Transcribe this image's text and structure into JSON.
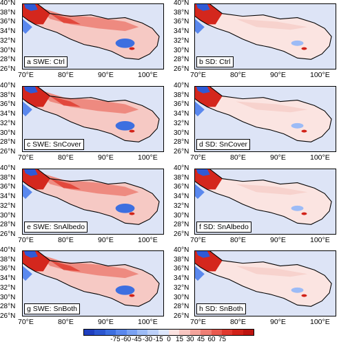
{
  "panels": [
    {
      "label": "a SWE: Ctrl",
      "kind": "swe"
    },
    {
      "label": "b SD: Ctrl",
      "kind": "sd"
    },
    {
      "label": "c SWE: SnCover",
      "kind": "swe"
    },
    {
      "label": "d SD: SnCover",
      "kind": "sd"
    },
    {
      "label": "e SWE: SnAlbedo",
      "kind": "swe"
    },
    {
      "label": "f SD: SnAlbedo",
      "kind": "sd"
    },
    {
      "label": "g SWE: SnBoth",
      "kind": "swe"
    },
    {
      "label": "h SD: SnBoth",
      "kind": "sd"
    }
  ],
  "lat_ticks": [
    "40°N",
    "38°N",
    "36°N",
    "34°N",
    "32°N",
    "30°N",
    "28°N",
    "26°N"
  ],
  "lon_ticks": [
    "70°E",
    "80°E",
    "90°E",
    "100°E"
  ],
  "colorbar": {
    "labels": [
      "-75",
      "-60",
      "-45",
      "-30",
      "-15",
      "0",
      "15",
      "30",
      "45",
      "60",
      "75"
    ],
    "colors": [
      "#1f3fbf",
      "#2c57d0",
      "#3d6fe0",
      "#5a88ee",
      "#7aa2f3",
      "#9cbbf6",
      "#bcd0f9",
      "#dce6fb",
      "#fbe2e0",
      "#f8c6c1",
      "#f3a49c",
      "#ee7f75",
      "#e85a4f",
      "#e0392f",
      "#d12219",
      "#bd1410"
    ]
  }
}
